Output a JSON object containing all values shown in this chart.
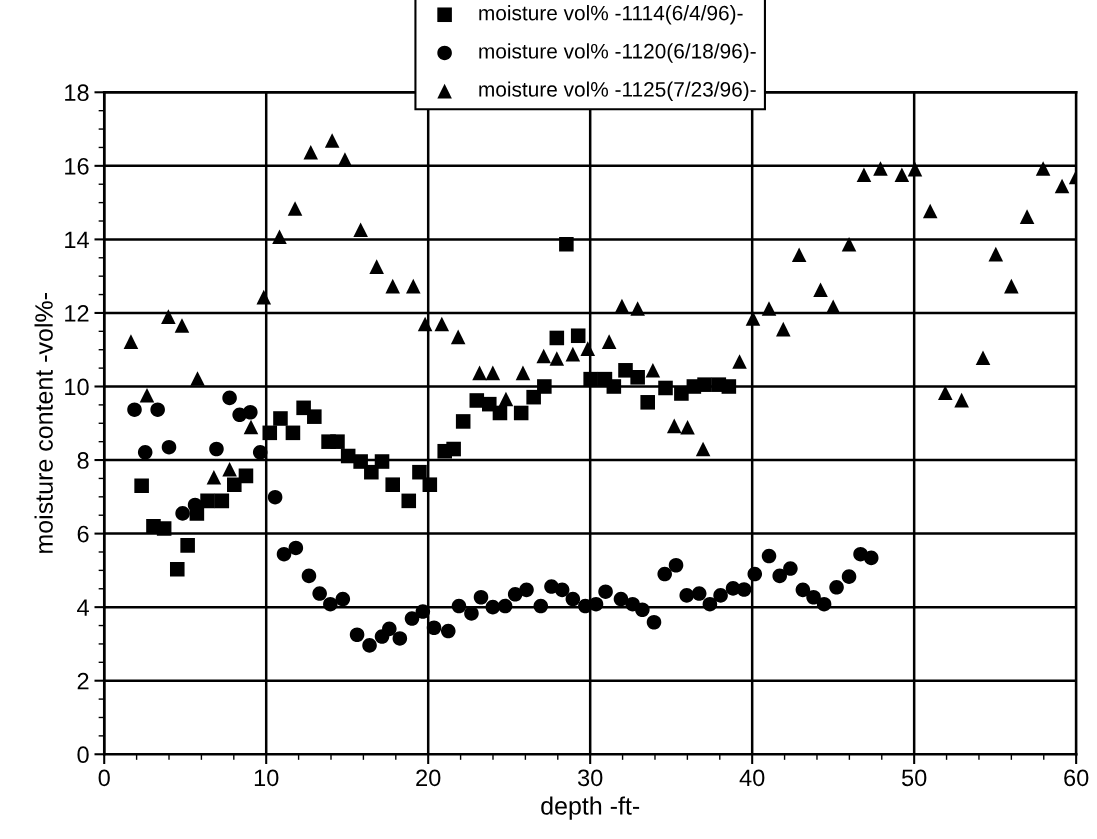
{
  "chart_data": {
    "type": "scatter",
    "xlabel": "depth -ft-",
    "ylabel": "moisture content -vol%-",
    "xlim": [
      0,
      60
    ],
    "xticks": [
      0,
      10,
      20,
      30,
      40,
      50,
      60
    ],
    "ylim": [
      0,
      18
    ],
    "yticks": [
      0,
      2,
      4,
      6,
      8,
      10,
      12,
      14,
      16,
      18
    ],
    "grid": true,
    "legend": "top",
    "series": [
      {
        "name": "moisture vol% -1114(6/4/96)-",
        "color": "#000000",
        "marker": "square",
        "x": [
          2.31,
          3.04,
          3.7,
          4.51,
          5.15,
          5.72,
          6.38,
          7.26,
          8.03,
          8.75,
          10.22,
          10.88,
          11.65,
          12.31,
          12.97,
          13.85,
          14.4,
          15.06,
          15.83,
          16.49,
          17.15,
          17.81,
          18.8,
          19.46,
          20.1,
          21.02,
          21.57,
          22.16,
          23.0,
          23.77,
          24.43,
          25.74,
          26.51,
          27.17,
          27.94,
          28.53,
          29.26,
          30.03,
          30.91,
          31.46,
          32.18,
          32.93,
          33.55,
          34.65,
          35.63,
          36.4,
          37.06,
          37.94,
          38.56
        ],
        "values": [
          7.3,
          6.2,
          6.14,
          5.03,
          5.68,
          6.55,
          6.89,
          6.89,
          7.33,
          7.57,
          8.74,
          9.13,
          8.74,
          9.42,
          9.18,
          8.5,
          8.5,
          8.11,
          7.96,
          7.67,
          7.96,
          7.33,
          6.89,
          7.67,
          7.33,
          8.24,
          8.3,
          9.05,
          9.62,
          9.52,
          9.28,
          9.28,
          9.71,
          10.0,
          11.32,
          13.87,
          11.38,
          10.2,
          10.2,
          10.0,
          10.44,
          10.25,
          9.57,
          9.96,
          9.81,
          10.0,
          10.05,
          10.05,
          10.0
        ]
      },
      {
        "name": "moisture vol% -1120(6/18/96)-",
        "color": "#000000",
        "marker": "circle",
        "x": [
          1.87,
          2.53,
          3.3,
          4.0,
          4.84,
          5.61,
          6.93,
          7.74,
          8.36,
          9.02,
          9.63,
          10.55,
          11.1,
          11.83,
          12.64,
          13.3,
          13.96,
          14.73,
          15.61,
          16.38,
          17.15,
          17.6,
          18.25,
          19.0,
          19.67,
          20.36,
          21.24,
          21.9,
          22.67,
          23.26,
          23.99,
          24.75,
          25.37,
          26.07,
          26.95,
          27.61,
          28.27,
          28.93,
          29.7,
          30.36,
          30.95,
          31.9,
          32.62,
          33.22,
          33.94,
          34.6,
          35.3,
          35.96,
          36.73,
          37.39,
          38.05,
          38.82,
          39.5,
          40.16,
          41.04,
          41.7,
          42.36,
          43.13,
          43.79,
          44.44,
          45.21,
          45.98,
          46.69,
          47.35
        ],
        "values": [
          9.37,
          8.21,
          9.37,
          8.35,
          6.55,
          6.78,
          8.3,
          9.69,
          9.23,
          9.3,
          8.21,
          6.99,
          5.44,
          5.61,
          4.85,
          4.37,
          4.08,
          4.22,
          3.25,
          2.96,
          3.2,
          3.41,
          3.15,
          3.69,
          3.88,
          3.44,
          3.35,
          4.03,
          3.83,
          4.27,
          4.0,
          4.03,
          4.35,
          4.47,
          4.03,
          4.56,
          4.47,
          4.22,
          4.03,
          4.08,
          4.42,
          4.22,
          4.08,
          3.93,
          3.59,
          4.9,
          5.14,
          4.32,
          4.37,
          4.08,
          4.32,
          4.51,
          4.48,
          4.9,
          5.39,
          4.85,
          5.05,
          4.47,
          4.27,
          4.08,
          4.54,
          4.83,
          5.44,
          5.34
        ]
      },
      {
        "name": "moisture vol% -1125(7/23/96)-",
        "color": "#000000",
        "marker": "triangle",
        "x": [
          1.65,
          2.64,
          3.96,
          4.8,
          5.76,
          6.77,
          7.74,
          9.06,
          9.85,
          10.82,
          11.78,
          12.75,
          14.07,
          14.86,
          15.83,
          16.82,
          17.81,
          19.08,
          19.81,
          20.84,
          21.85,
          23.17,
          23.99,
          24.8,
          25.85,
          27.13,
          27.94,
          28.93,
          29.85,
          31.17,
          31.96,
          32.93,
          33.87,
          35.19,
          36.01,
          36.97,
          39.22,
          40.05,
          41.04,
          41.92,
          42.9,
          44.22,
          45.0,
          45.98,
          46.9,
          47.92,
          49.24,
          50.05,
          50.99,
          51.92,
          52.93,
          54.25,
          55.04,
          56.0,
          56.97,
          57.96,
          59.13,
          60.0
        ],
        "values": [
          11.22,
          9.76,
          11.9,
          11.66,
          10.22,
          7.53,
          7.75,
          8.9,
          12.43,
          14.07,
          14.84,
          16.37,
          16.69,
          16.17,
          14.26,
          13.26,
          12.73,
          12.73,
          11.7,
          11.7,
          11.35,
          10.37,
          10.37,
          9.66,
          10.37,
          10.83,
          10.76,
          10.88,
          11.03,
          11.22,
          12.19,
          12.12,
          10.44,
          8.93,
          8.89,
          8.3,
          10.68,
          11.85,
          12.12,
          11.56,
          13.58,
          12.63,
          12.17,
          13.87,
          15.76,
          15.93,
          15.76,
          15.91,
          14.77,
          9.83,
          9.63,
          10.78,
          13.6,
          12.73,
          14.62,
          15.93,
          15.45,
          15.7
        ]
      }
    ]
  }
}
